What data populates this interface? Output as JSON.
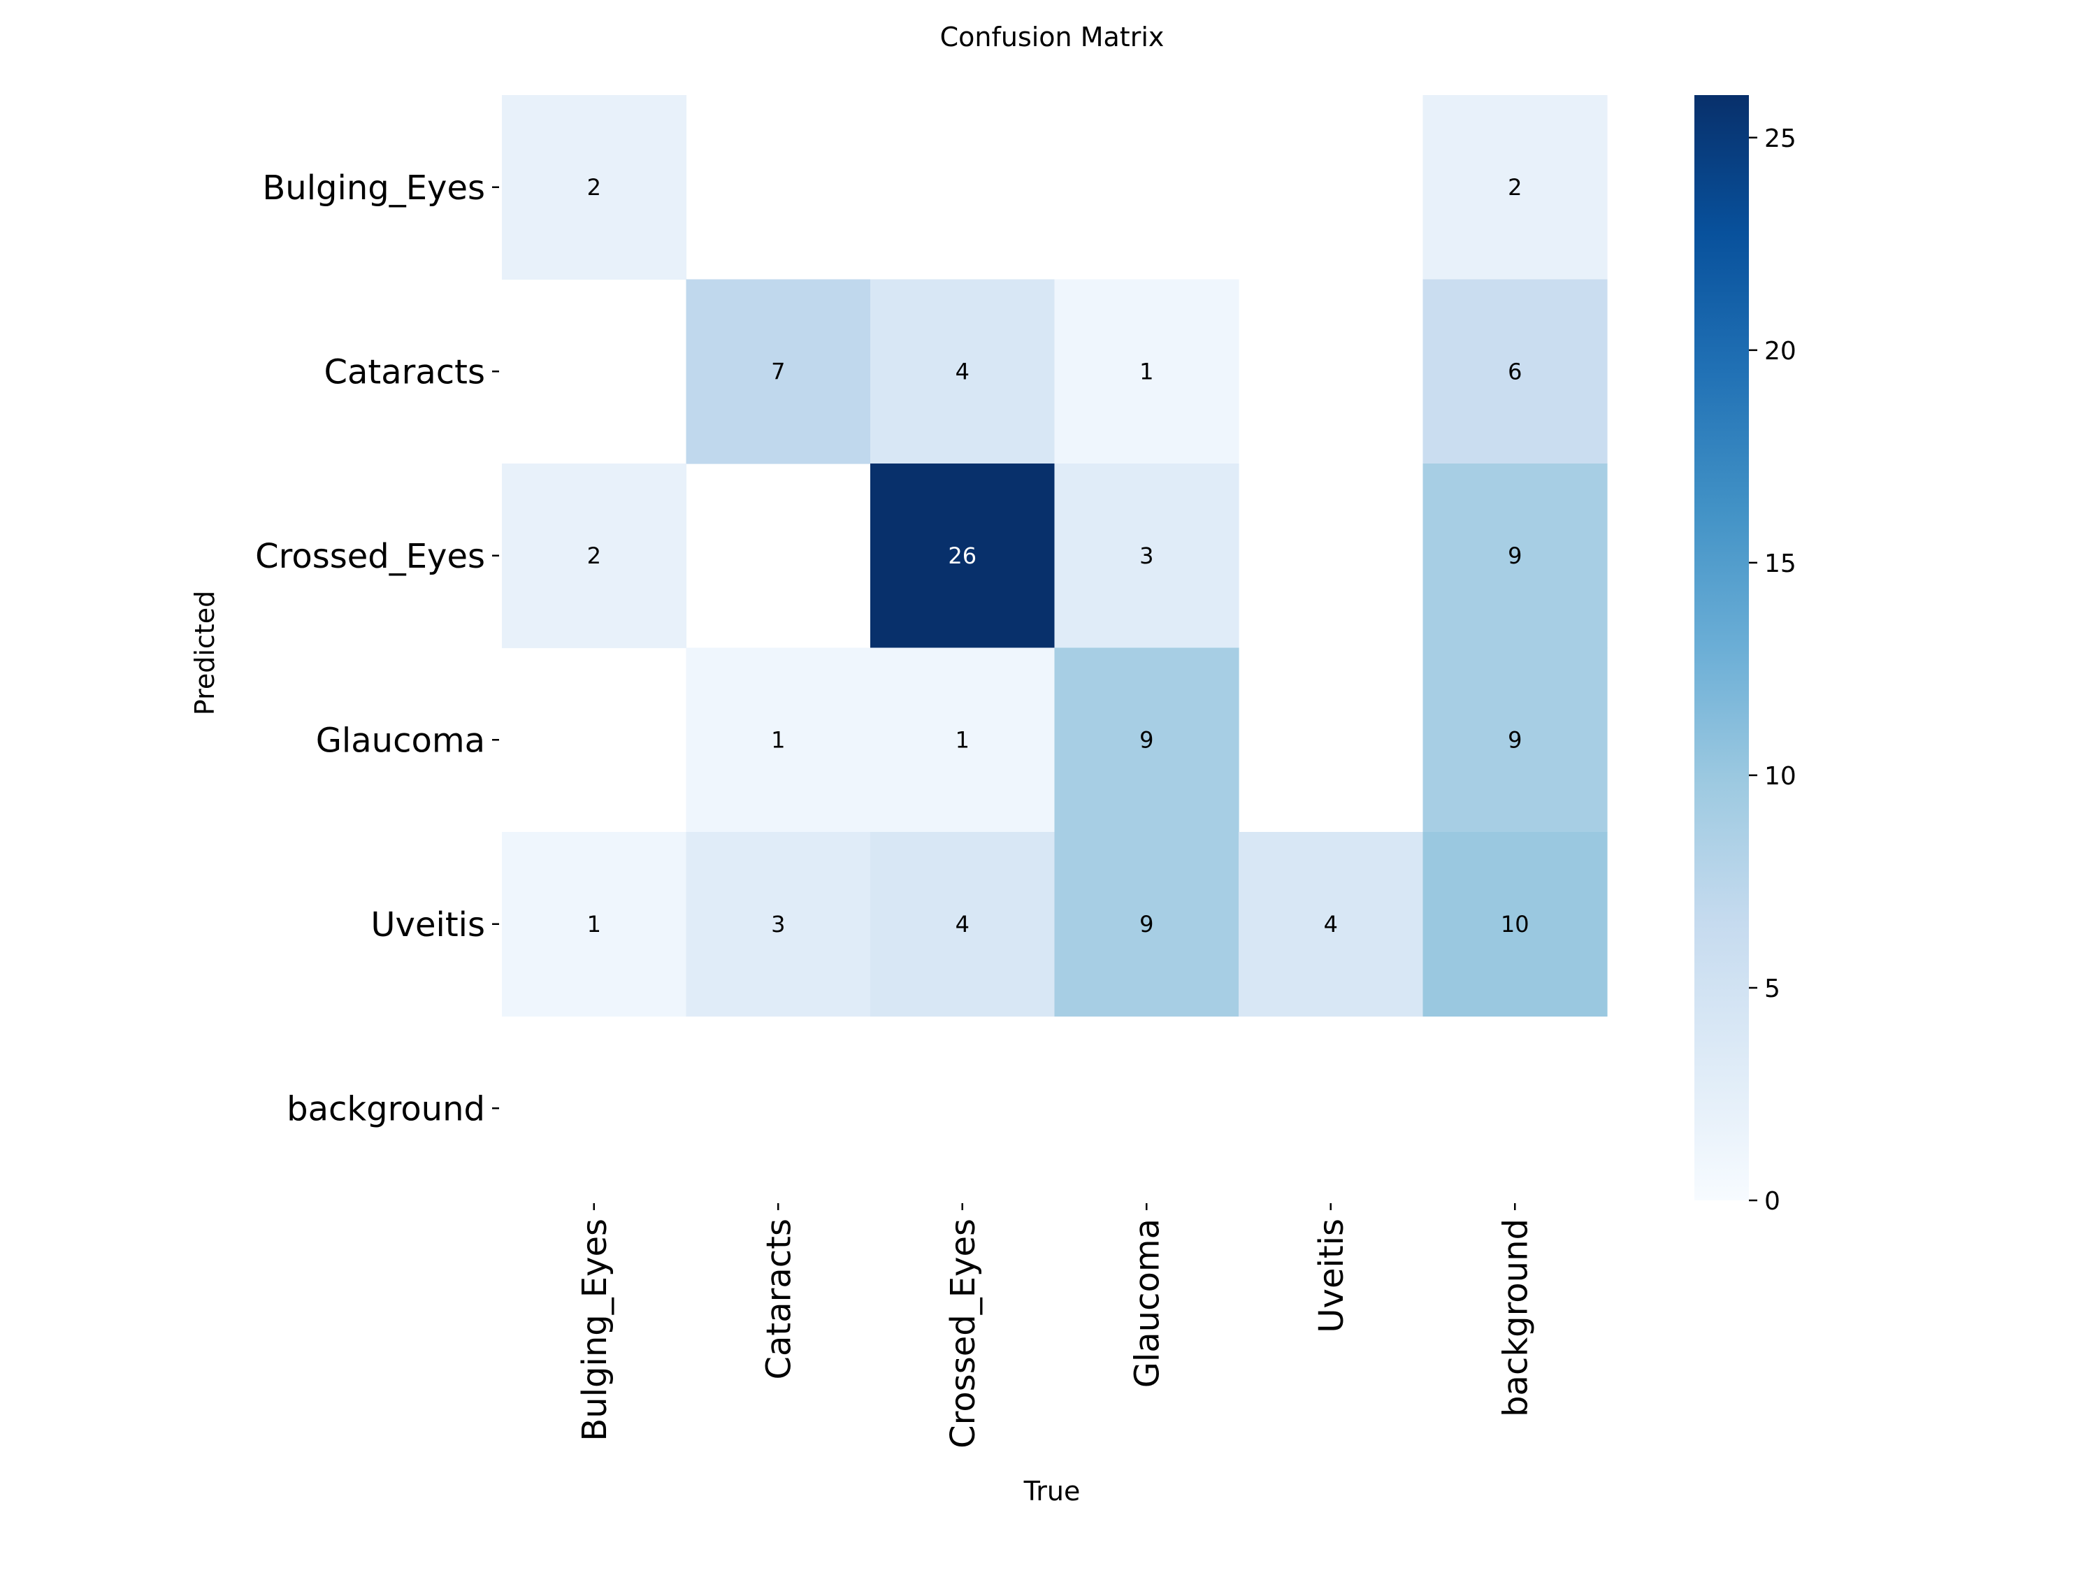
{
  "chart_data": {
    "type": "heatmap",
    "title": "Confusion Matrix",
    "xlabel": "True",
    "ylabel": "Predicted",
    "x_categories": [
      "Bulging_Eyes",
      "Cataracts",
      "Crossed_Eyes",
      "Glaucoma",
      "Uveitis",
      "background"
    ],
    "y_categories": [
      "Bulging_Eyes",
      "Cataracts",
      "Crossed_Eyes",
      "Glaucoma",
      "Uveitis",
      "background"
    ],
    "matrix": [
      [
        2,
        null,
        null,
        null,
        null,
        2
      ],
      [
        null,
        7,
        4,
        1,
        null,
        6
      ],
      [
        2,
        null,
        26,
        3,
        null,
        9
      ],
      [
        null,
        1,
        1,
        9,
        null,
        9
      ],
      [
        1,
        3,
        4,
        9,
        4,
        10
      ],
      [
        null,
        null,
        null,
        null,
        null,
        null
      ]
    ],
    "colorbar": {
      "range": [
        0,
        26
      ],
      "ticks": [
        0,
        5,
        10,
        15,
        20,
        25
      ],
      "colormap": "Blues",
      "colors": [
        "#f7fbff",
        "#deebf7",
        "#c6dbef",
        "#9ecae1",
        "#6baed6",
        "#4292c6",
        "#2171b5",
        "#08519c",
        "#08306b"
      ]
    },
    "grid": false
  }
}
